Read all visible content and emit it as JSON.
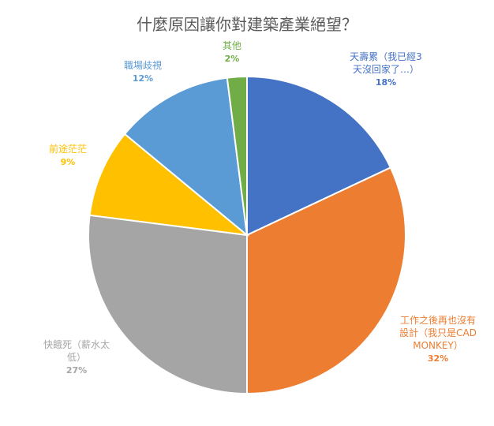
{
  "chart_data": {
    "type": "pie",
    "title": "什麼原因讓你對建築產業絕望？",
    "slices": [
      {
        "label": [
          "天壽累（我已經3",
          "天沒回家了…）"
        ],
        "value": 18,
        "pct_label": "18%",
        "color": "#4472C4"
      },
      {
        "label": [
          "工作之後再也沒有",
          "設計（我只是CAD",
          "MONKEY）"
        ],
        "value": 32,
        "pct_label": "32%",
        "color": "#ED7D31"
      },
      {
        "label": [
          "快餓死（薪水太",
          "低）"
        ],
        "value": 27,
        "pct_label": "27%",
        "color": "#A5A5A5"
      },
      {
        "label": [
          "前途茫茫"
        ],
        "value": 9,
        "pct_label": "9%",
        "color": "#FFC000"
      },
      {
        "label": [
          "職場歧視"
        ],
        "value": 12,
        "pct_label": "12%",
        "color": "#5B9BD5"
      },
      {
        "label": [
          "其他"
        ],
        "value": 2,
        "pct_label": "2%",
        "color": "#70AD47"
      }
    ]
  }
}
